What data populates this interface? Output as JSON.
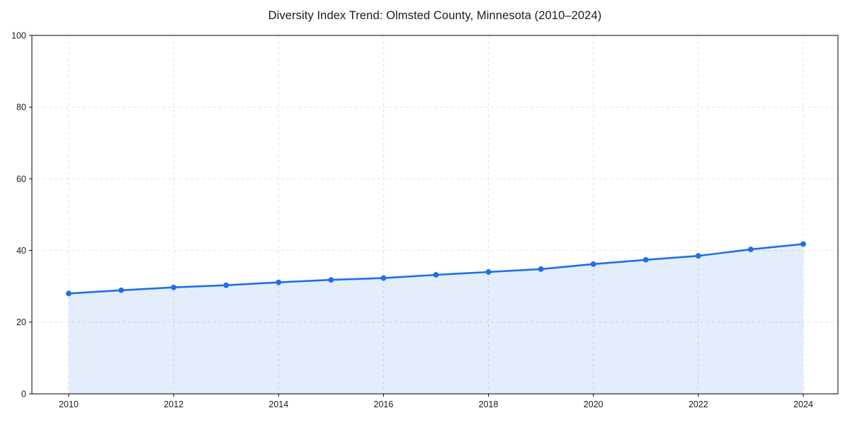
{
  "chart_data": {
    "type": "line",
    "title": "Diversity Index Trend: Olmsted County, Minnesota (2010–2024)",
    "x": [
      2010,
      2011,
      2012,
      2013,
      2014,
      2015,
      2016,
      2017,
      2018,
      2019,
      2020,
      2021,
      2022,
      2023,
      2024
    ],
    "values": [
      28.0,
      28.9,
      29.7,
      30.3,
      31.1,
      31.8,
      32.3,
      33.2,
      34.0,
      34.8,
      36.2,
      37.4,
      38.5,
      40.3,
      41.8
    ],
    "xlabel": "",
    "ylabel": "",
    "ylim": [
      0,
      100
    ],
    "yticks": [
      0,
      20,
      40,
      60,
      80,
      100
    ],
    "xticks": [
      2010,
      2012,
      2014,
      2016,
      2018,
      2020,
      2022,
      2024
    ],
    "grid": true,
    "grid_style": "dashed",
    "legend": "none",
    "marker": "circle",
    "area_fill": true,
    "colors": {
      "line": "#1f6fe8",
      "marker": "#1f6fe8",
      "fill": "#1f6fe8",
      "fill_opacity": 0.12,
      "grid": "#e2e2e2",
      "axis": "#000000",
      "tick_text": "#1a1a1a",
      "background": "#ffffff"
    }
  }
}
